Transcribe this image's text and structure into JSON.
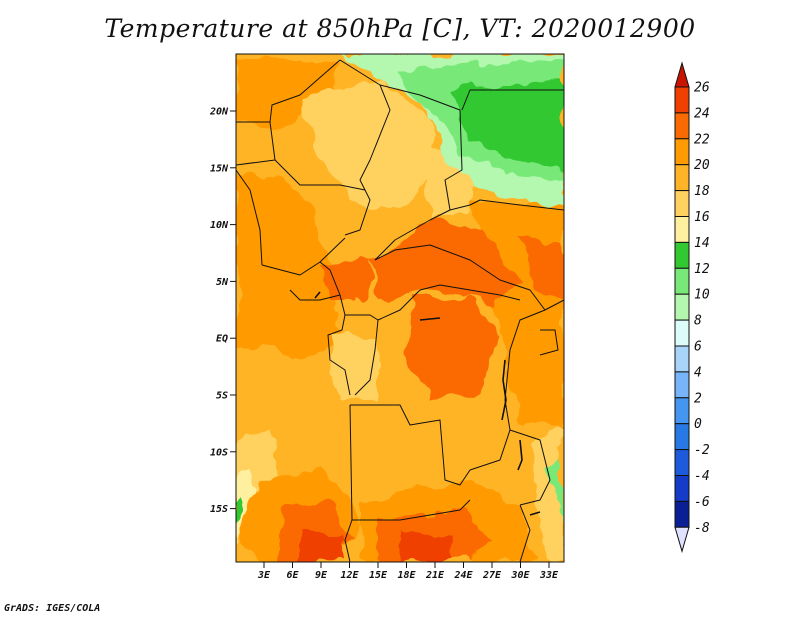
{
  "title": "Temperature at 850hPa [C], VT: 2020012900",
  "credit": "GrADS: IGES/COLA",
  "lat_ticks": [
    "20N",
    "15N",
    "10N",
    "5N",
    "EQ",
    "5S",
    "10S",
    "15S"
  ],
  "lon_ticks": [
    "3E",
    "6E",
    "9E",
    "12E",
    "15E",
    "18E",
    "21E",
    "24E",
    "27E",
    "30E",
    "33E"
  ],
  "colorbar": {
    "labels": [
      "26",
      "24",
      "22",
      "20",
      "18",
      "16",
      "14",
      "12",
      "10",
      "8",
      "6",
      "4",
      "2",
      "0",
      "-2",
      "-4",
      "-6",
      "-8"
    ],
    "colors": [
      "#dc1e00",
      "#f04000",
      "#fa6a00",
      "#ff9a00",
      "#ffb428",
      "#ffd260",
      "#fff0a0",
      "#32c832",
      "#78e878",
      "#b4f8b0",
      "#dcfcfa",
      "#a8d4fa",
      "#78b4fa",
      "#4496f0",
      "#2878e6",
      "#1e5adc",
      "#143cc8",
      "#0a1e96",
      "#08085a"
    ],
    "arrow_top_color": "#c81400",
    "arrow_bottom_color": "#e0e0ff"
  }
}
